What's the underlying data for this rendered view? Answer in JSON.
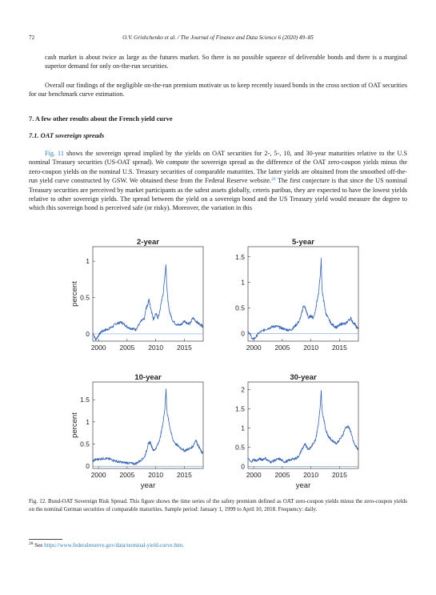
{
  "header": {
    "page_number": "72",
    "running_head": "O.V. Grishchenko et al. / The Journal of Finance and Data Science 6 (2020) 49–85"
  },
  "body": {
    "p1": "cash market is about twice as large as the futures market. So there is no possible squeeze of deliverable bonds and there is a marginal superior demand for only on-the-run securities.",
    "p2": "Overall our findings of the negligible on-the-run premium motivate us to keep recently issued bonds in the cross section of OAT securities for our benchmark curve estimation.",
    "section_heading": "7. A few other results about the French yield curve",
    "subsection_heading": "7.1. OAT sovereign spreads",
    "p3_link": "Fig. 11",
    "p3_a": " shows the sovereign spread implied by the yields on OAT securities for 2-, 5-, 10, and 30-year maturities relative to the U.S nominal Treasury securities (US-OAT spread). We compute the sovereign spread as the difference of the OAT zero-coupon yields minus the zero-coupon yields on the nominal U.S. Treasury securities of comparable maturities. The latter yields are obtained from the smoothed off-the-run yield curve constructed by GSW. We obtained these from the Federal Reserve website.",
    "p3_fnref": "28",
    "p3_b": " The first conjecture is that since the US nominal Treasury securities are perceived by market participants as the safest assets globally, ceteris paribus, they are expected to have the lowest yields relative to other sovereign yields. The spread between the yield on a sovereign bond and the US Treasury yield would measure the degree to which this sovereign bond is perceived safe (or risky). Moreover, the variation in this"
  },
  "figure": {
    "caption": "Fig. 12.  Bund-OAT Sovereign Risk Spread. This figure shows the time series of the safety premium defined as OAT zero-coupon yields minus the zero-coupon yields on the nominal German securities of comparable maturities. Sample period: January 1, 1999 to April 10, 2018. Frequency: daily."
  },
  "footnote": {
    "number": "28",
    "text": " See ",
    "link": "https://www.federalreserve.gov/data/nominal-yield-curve.htm."
  },
  "chart_data": [
    {
      "type": "line",
      "title": "2-year",
      "xlabel": "",
      "ylabel": "percent",
      "xlim": [
        1999,
        2018.3
      ],
      "ylim": [
        -0.1,
        1.2
      ],
      "xticks": [
        2000,
        2005,
        2010,
        2015
      ],
      "yticks": [
        0,
        0.5,
        1
      ],
      "grid": false,
      "reference_line": 0,
      "series": [
        {
          "x": [
            1999.0,
            1999.5,
            2000.0,
            2000.5,
            2001.0,
            2001.5,
            2002.0,
            2002.5,
            2003.0,
            2003.5,
            2004.0,
            2004.5,
            2005.0,
            2005.5,
            2006.0,
            2006.5,
            2007.0,
            2007.5,
            2008.0,
            2008.3,
            2008.6,
            2008.8,
            2009.0,
            2009.3,
            2009.6,
            2010.0,
            2010.4,
            2010.7,
            2011.0,
            2011.3,
            2011.6,
            2011.8,
            2011.9,
            2012.0,
            2012.2,
            2012.5,
            2013.0,
            2013.5,
            2014.0,
            2014.5,
            2015.0,
            2015.5,
            2016.0,
            2016.5,
            2017.0,
            2017.5,
            2018.0,
            2018.25
          ],
          "y": [
            0.02,
            -0.08,
            -0.02,
            0.03,
            0.05,
            0.06,
            0.08,
            0.1,
            0.14,
            0.15,
            0.16,
            0.13,
            0.1,
            0.08,
            0.07,
            0.06,
            0.12,
            0.18,
            0.2,
            0.35,
            0.4,
            0.48,
            0.4,
            0.3,
            0.2,
            0.28,
            0.22,
            0.3,
            0.45,
            0.55,
            0.8,
            0.95,
            0.7,
            0.6,
            0.4,
            0.28,
            0.18,
            0.14,
            0.12,
            0.13,
            0.18,
            0.15,
            0.14,
            0.22,
            0.18,
            0.14,
            0.12,
            0.1
          ]
        }
      ]
    },
    {
      "type": "line",
      "title": "5-year",
      "xlabel": "",
      "ylabel": "",
      "xlim": [
        1999,
        2018.3
      ],
      "ylim": [
        -0.15,
        1.7
      ],
      "xticks": [
        2000,
        2005,
        2010,
        2015
      ],
      "yticks": [
        0,
        0.5,
        1,
        1.5
      ],
      "grid": false,
      "reference_line": 0,
      "series": [
        {
          "x": [
            1999.0,
            1999.4,
            1999.8,
            2000.3,
            2000.8,
            2001.5,
            2002.0,
            2002.5,
            2003.0,
            2003.5,
            2004.0,
            2004.5,
            2005.0,
            2005.5,
            2006.0,
            2006.5,
            2007.0,
            2007.5,
            2008.0,
            2008.4,
            2008.7,
            2009.0,
            2009.3,
            2009.6,
            2010.0,
            2010.4,
            2010.8,
            2011.0,
            2011.3,
            2011.6,
            2011.8,
            2011.9,
            2012.0,
            2012.3,
            2012.6,
            2013.0,
            2013.5,
            2014.0,
            2014.5,
            2015.0,
            2015.5,
            2016.0,
            2016.5,
            2017.0,
            2017.3,
            2017.7,
            2018.0,
            2018.25
          ],
          "y": [
            0.05,
            -0.02,
            -0.12,
            -0.08,
            0.0,
            0.05,
            0.08,
            0.1,
            0.12,
            0.14,
            0.14,
            0.12,
            0.1,
            0.08,
            0.07,
            0.07,
            0.12,
            0.18,
            0.25,
            0.4,
            0.55,
            0.5,
            0.4,
            0.3,
            0.35,
            0.3,
            0.45,
            0.6,
            0.75,
            1.1,
            1.45,
            1.0,
            0.8,
            0.6,
            0.4,
            0.3,
            0.2,
            0.15,
            0.12,
            0.16,
            0.2,
            0.18,
            0.25,
            0.3,
            0.22,
            0.18,
            0.12,
            0.1
          ]
        }
      ]
    },
    {
      "type": "line",
      "title": "10-year",
      "xlabel": "year",
      "ylabel": "percent",
      "xlim": [
        1999,
        2018.3
      ],
      "ylim": [
        -0.05,
        1.9
      ],
      "xticks": [
        2000,
        2005,
        2010,
        2015
      ],
      "yticks": [
        0,
        0.5,
        1,
        1.5
      ],
      "grid": false,
      "reference_line": 0,
      "series": [
        {
          "x": [
            1999.0,
            1999.5,
            2000.0,
            2000.5,
            2001.0,
            2001.5,
            2002.0,
            2002.5,
            2003.0,
            2003.5,
            2004.0,
            2004.5,
            2005.0,
            2005.5,
            2006.0,
            2006.5,
            2007.0,
            2007.5,
            2008.0,
            2008.4,
            2008.7,
            2009.0,
            2009.3,
            2009.6,
            2010.0,
            2010.4,
            2010.8,
            2011.0,
            2011.3,
            2011.6,
            2011.8,
            2011.9,
            2012.0,
            2012.3,
            2012.6,
            2013.0,
            2013.5,
            2014.0,
            2014.5,
            2015.0,
            2015.5,
            2016.0,
            2016.5,
            2017.0,
            2017.3,
            2017.7,
            2018.0,
            2018.25
          ],
          "y": [
            0.12,
            0.15,
            0.16,
            0.17,
            0.18,
            0.17,
            0.16,
            0.14,
            0.12,
            0.1,
            0.09,
            0.08,
            0.08,
            0.07,
            0.06,
            0.06,
            0.1,
            0.15,
            0.2,
            0.35,
            0.5,
            0.55,
            0.45,
            0.35,
            0.4,
            0.5,
            0.65,
            0.8,
            1.0,
            1.3,
            1.75,
            1.4,
            1.2,
            1.0,
            0.8,
            0.6,
            0.5,
            0.45,
            0.4,
            0.35,
            0.38,
            0.4,
            0.45,
            0.6,
            0.5,
            0.4,
            0.32,
            0.3
          ]
        }
      ]
    },
    {
      "type": "line",
      "title": "30-year",
      "xlabel": "year",
      "ylabel": "",
      "xlim": [
        1999,
        2018.3
      ],
      "ylim": [
        -0.05,
        2.2
      ],
      "xticks": [
        2000,
        2005,
        2010,
        2015
      ],
      "yticks": [
        0,
        0.5,
        1,
        1.5,
        2
      ],
      "grid": false,
      "reference_line": 0,
      "series": [
        {
          "x": [
            1999.0,
            1999.5,
            2000.0,
            2000.5,
            2001.0,
            2001.5,
            2002.0,
            2002.5,
            2003.0,
            2003.5,
            2004.0,
            2004.5,
            2005.0,
            2005.5,
            2006.0,
            2006.5,
            2007.0,
            2007.5,
            2008.0,
            2008.4,
            2008.7,
            2009.0,
            2009.3,
            2009.6,
            2010.0,
            2010.4,
            2010.8,
            2011.0,
            2011.3,
            2011.6,
            2011.8,
            2011.9,
            2012.0,
            2012.3,
            2012.6,
            2013.0,
            2013.5,
            2014.0,
            2014.5,
            2015.0,
            2015.5,
            2016.0,
            2016.5,
            2017.0,
            2017.3,
            2017.7,
            2018.0,
            2018.25
          ],
          "y": [
            0.2,
            0.12,
            0.18,
            0.15,
            0.2,
            0.18,
            0.22,
            0.15,
            0.12,
            0.15,
            0.18,
            0.2,
            0.15,
            0.12,
            0.15,
            0.18,
            0.2,
            0.22,
            0.3,
            0.45,
            0.5,
            0.6,
            0.5,
            0.45,
            0.5,
            0.6,
            0.7,
            0.85,
            1.1,
            1.5,
            2.0,
            1.6,
            1.4,
            1.2,
            0.95,
            0.8,
            0.7,
            0.65,
            0.6,
            0.7,
            0.8,
            1.0,
            1.05,
            0.9,
            0.7,
            0.55,
            0.5,
            0.45
          ]
        }
      ]
    }
  ]
}
